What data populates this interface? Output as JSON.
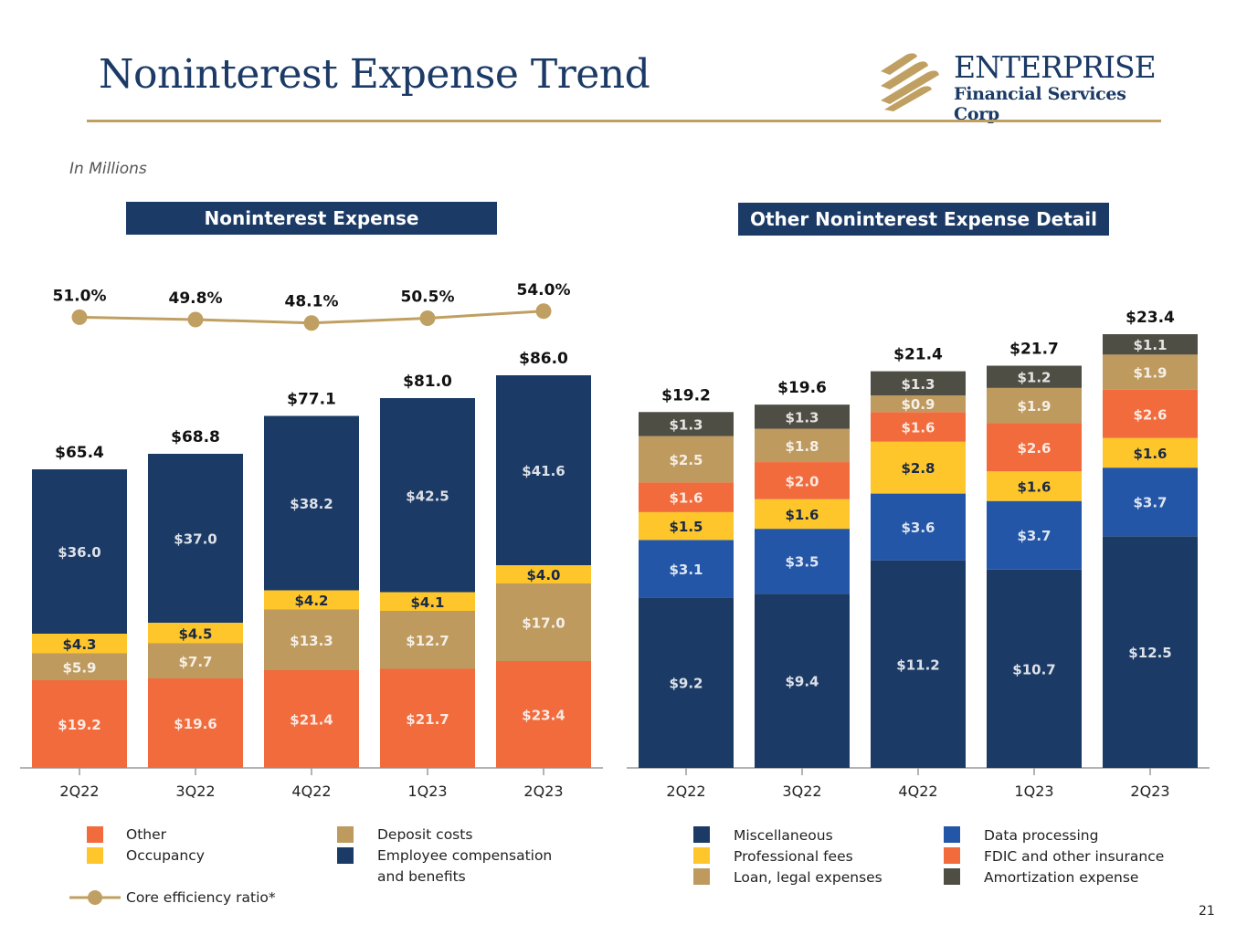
{
  "page": {
    "title": "Noninterest Expense Trend",
    "units_note": "In Millions",
    "page_number": "21",
    "logo": {
      "name": "ENTERPRISE",
      "subtitle": "Financial Services Corp",
      "icon": "enterprise-stripes-logo"
    }
  },
  "colors": {
    "navy": "#1b3a66",
    "orange": "#f16b3c",
    "yellow": "#fec62b",
    "tan": "#be9a5f",
    "blue": "#2456a8",
    "darkgray": "#4f4e45",
    "line": "#c0a062"
  },
  "chart_data": [
    {
      "type": "bar",
      "stacked": true,
      "title": "Noninterest Expense",
      "categories": [
        "2Q22",
        "3Q22",
        "4Q22",
        "1Q23",
        "2Q23"
      ],
      "series": [
        {
          "name": "Other",
          "color_key": "orange",
          "values": [
            19.2,
            19.6,
            21.4,
            21.7,
            23.4
          ],
          "labels": [
            "$19.2",
            "$19.6",
            "$21.4",
            "$21.7",
            "$23.4"
          ]
        },
        {
          "name": "Deposit costs",
          "color_key": "tan",
          "values": [
            5.9,
            7.7,
            13.3,
            12.7,
            17.0
          ],
          "labels": [
            "$5.9",
            "$7.7",
            "$13.3",
            "$12.7",
            "$17.0"
          ]
        },
        {
          "name": "Occupancy",
          "color_key": "yellow",
          "values": [
            4.3,
            4.5,
            4.2,
            4.1,
            4.0
          ],
          "labels": [
            "$4.3",
            "$4.5",
            "$4.2",
            "$4.1",
            "$4.0"
          ]
        },
        {
          "name": "Employee compensation and benefits",
          "color_key": "navy",
          "values": [
            36.0,
            37.0,
            38.2,
            42.5,
            41.6
          ],
          "labels": [
            "$36.0",
            "$37.0",
            "$38.2",
            "$42.5",
            "$41.6"
          ]
        }
      ],
      "totals": [
        65.4,
        68.8,
        77.1,
        81.0,
        86.0
      ],
      "total_labels": [
        "$65.4",
        "$68.8",
        "$77.1",
        "$81.0",
        "$86.0"
      ],
      "line_series": {
        "name": "Core efficiency ratio*",
        "values": [
          51.0,
          49.8,
          48.1,
          50.5,
          54.0
        ],
        "labels": [
          "51.0%",
          "49.8%",
          "48.1%",
          "50.5%",
          "54.0%"
        ]
      },
      "legend": [
        {
          "label": "Other",
          "color_key": "orange"
        },
        {
          "label": "Occupancy",
          "color_key": "yellow"
        },
        {
          "label": "Deposit costs",
          "color_key": "tan"
        },
        {
          "label": "Employee compensation",
          "label2": "and benefits",
          "color_key": "navy"
        },
        {
          "label": "Core efficiency ratio*",
          "color_key": "line"
        }
      ],
      "xlabel": "",
      "ylabel": "",
      "ylim": [
        0,
        86
      ]
    },
    {
      "type": "bar",
      "stacked": true,
      "title": "Other Noninterest Expense Detail",
      "categories": [
        "2Q22",
        "3Q22",
        "4Q22",
        "1Q23",
        "2Q23"
      ],
      "series": [
        {
          "name": "Miscellaneous",
          "color_key": "navy",
          "values": [
            9.2,
            9.4,
            11.2,
            10.7,
            12.5
          ],
          "labels": [
            "$9.2",
            "$9.4",
            "$11.2",
            "$10.7",
            "$12.5"
          ]
        },
        {
          "name": "Data processing",
          "color_key": "blue",
          "values": [
            3.1,
            3.5,
            3.6,
            3.7,
            3.7
          ],
          "labels": [
            "$3.1",
            "$3.5",
            "$3.6",
            "$3.7",
            "$3.7"
          ]
        },
        {
          "name": "Professional fees",
          "color_key": "yellow",
          "values": [
            1.5,
            1.6,
            2.8,
            1.6,
            1.6
          ],
          "labels": [
            "$1.5",
            "$1.6",
            "$2.8",
            "$1.6",
            "$1.6"
          ]
        },
        {
          "name": "FDIC and other insurance",
          "color_key": "orange",
          "values": [
            1.6,
            2.0,
            1.6,
            2.6,
            2.6
          ],
          "labels": [
            "$1.6",
            "$2.0",
            "$1.6",
            "$2.6",
            "$2.6"
          ]
        },
        {
          "name": "Loan, legal expenses",
          "color_key": "tan",
          "values": [
            2.5,
            1.8,
            0.9,
            1.9,
            1.9
          ],
          "labels": [
            "$2.5",
            "$1.8",
            "$0.9",
            "$1.9",
            "$1.9"
          ]
        },
        {
          "name": "Amortization expense",
          "color_key": "darkgray",
          "values": [
            1.3,
            1.3,
            1.3,
            1.2,
            1.1
          ],
          "labels": [
            "$1.3",
            "$1.3",
            "$1.3",
            "$1.2",
            "$1.1"
          ]
        }
      ],
      "totals": [
        19.2,
        19.6,
        21.4,
        21.7,
        23.4
      ],
      "total_labels": [
        "$19.2",
        "$19.6",
        "$21.4",
        "$21.7",
        "$23.4"
      ],
      "legend": [
        {
          "label": "Miscellaneous",
          "color_key": "navy"
        },
        {
          "label": "Professional fees",
          "color_key": "yellow"
        },
        {
          "label": "Loan, legal expenses",
          "color_key": "tan"
        },
        {
          "label": "Data processing",
          "color_key": "blue"
        },
        {
          "label": "FDIC and other insurance",
          "color_key": "orange"
        },
        {
          "label": "Amortization expense",
          "color_key": "darkgray"
        }
      ],
      "xlabel": "",
      "ylabel": "",
      "ylim": [
        0,
        23.4
      ]
    }
  ]
}
